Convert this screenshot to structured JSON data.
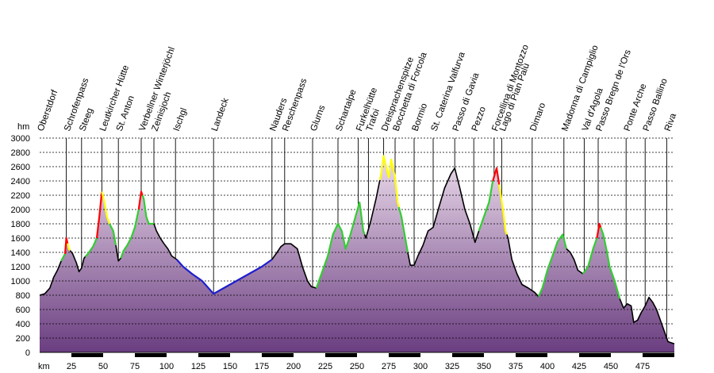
{
  "chart_data": {
    "type": "area",
    "ylabel": "hm",
    "xlabel": "km",
    "ylim": [
      0,
      3000
    ],
    "xlim": [
      0,
      500
    ],
    "y_ticks": [
      0,
      200,
      400,
      600,
      800,
      1000,
      1200,
      1400,
      1600,
      1800,
      2000,
      2200,
      2400,
      2600,
      2800,
      3000
    ],
    "x_ticks": [
      25,
      50,
      75,
      100,
      125,
      150,
      175,
      200,
      225,
      250,
      275,
      300,
      325,
      350,
      375,
      400,
      425,
      450,
      475
    ],
    "grid": true,
    "colors": {
      "area_top": "#ecdcec",
      "area_bottom": "#6a3d80",
      "line_default": "#000000",
      "line_green": "#33cc33",
      "line_yellow": "#ffff00",
      "line_red": "#ff0000",
      "line_blue": "#1f1fcc",
      "scale_bar": "#000000"
    },
    "profile": [
      [
        0,
        800
      ],
      [
        4,
        820
      ],
      [
        8,
        900
      ],
      [
        11,
        1050
      ],
      [
        14,
        1150
      ],
      [
        17,
        1280
      ],
      [
        20,
        1380
      ],
      [
        21,
        1600
      ],
      [
        23,
        1450
      ],
      [
        26,
        1380
      ],
      [
        29,
        1250
      ],
      [
        31,
        1130
      ],
      [
        33,
        1180
      ],
      [
        35,
        1320
      ],
      [
        38,
        1380
      ],
      [
        42,
        1480
      ],
      [
        45,
        1600
      ],
      [
        47,
        1900
      ],
      [
        49,
        2250
      ],
      [
        51,
        2100
      ],
      [
        53,
        1900
      ],
      [
        55,
        1800
      ],
      [
        58,
        1700
      ],
      [
        60,
        1500
      ],
      [
        62,
        1280
      ],
      [
        64,
        1320
      ],
      [
        66,
        1420
      ],
      [
        69,
        1500
      ],
      [
        72,
        1600
      ],
      [
        75,
        1750
      ],
      [
        78,
        2000
      ],
      [
        80,
        2250
      ],
      [
        82,
        2150
      ],
      [
        84,
        1900
      ],
      [
        86,
        1800
      ],
      [
        90,
        1800
      ],
      [
        92,
        1700
      ],
      [
        95,
        1600
      ],
      [
        98,
        1520
      ],
      [
        101,
        1450
      ],
      [
        104,
        1350
      ],
      [
        108,
        1300
      ],
      [
        113,
        1200
      ],
      [
        120,
        1100
      ],
      [
        128,
        1000
      ],
      [
        137,
        820
      ],
      [
        145,
        900
      ],
      [
        155,
        1000
      ],
      [
        165,
        1100
      ],
      [
        175,
        1200
      ],
      [
        183,
        1300
      ],
      [
        187,
        1400
      ],
      [
        190,
        1480
      ],
      [
        193,
        1520
      ],
      [
        198,
        1520
      ],
      [
        203,
        1450
      ],
      [
        207,
        1200
      ],
      [
        211,
        1000
      ],
      [
        214,
        920
      ],
      [
        218,
        900
      ],
      [
        222,
        1100
      ],
      [
        227,
        1350
      ],
      [
        231,
        1650
      ],
      [
        235,
        1800
      ],
      [
        238,
        1700
      ],
      [
        241,
        1450
      ],
      [
        244,
        1600
      ],
      [
        248,
        1850
      ],
      [
        252,
        2100
      ],
      [
        255,
        1700
      ],
      [
        257,
        1600
      ],
      [
        261,
        1850
      ],
      [
        265,
        2150
      ],
      [
        269,
        2500
      ],
      [
        271,
        2750
      ],
      [
        273,
        2600
      ],
      [
        275,
        2450
      ],
      [
        277,
        2700
      ],
      [
        280,
        2450
      ],
      [
        282,
        2100
      ],
      [
        285,
        1900
      ],
      [
        288,
        1600
      ],
      [
        290,
        1400
      ],
      [
        292,
        1220
      ],
      [
        295,
        1220
      ],
      [
        298,
        1350
      ],
      [
        302,
        1500
      ],
      [
        306,
        1700
      ],
      [
        310,
        1750
      ],
      [
        314,
        2000
      ],
      [
        319,
        2300
      ],
      [
        324,
        2500
      ],
      [
        327,
        2580
      ],
      [
        331,
        2300
      ],
      [
        335,
        2000
      ],
      [
        339,
        1800
      ],
      [
        343,
        1540
      ],
      [
        346,
        1700
      ],
      [
        350,
        1900
      ],
      [
        354,
        2100
      ],
      [
        357,
        2400
      ],
      [
        360,
        2580
      ],
      [
        362,
        2350
      ],
      [
        365,
        2000
      ],
      [
        367,
        1700
      ],
      [
        369,
        1600
      ],
      [
        372,
        1300
      ],
      [
        376,
        1100
      ],
      [
        380,
        950
      ],
      [
        385,
        900
      ],
      [
        390,
        840
      ],
      [
        393,
        780
      ],
      [
        396,
        900
      ],
      [
        400,
        1150
      ],
      [
        404,
        1350
      ],
      [
        408,
        1550
      ],
      [
        412,
        1650
      ],
      [
        415,
        1450
      ],
      [
        418,
        1400
      ],
      [
        421,
        1300
      ],
      [
        424,
        1150
      ],
      [
        428,
        1100
      ],
      [
        432,
        1200
      ],
      [
        436,
        1450
      ],
      [
        439,
        1600
      ],
      [
        441,
        1800
      ],
      [
        444,
        1650
      ],
      [
        447,
        1400
      ],
      [
        449,
        1200
      ],
      [
        453,
        1000
      ],
      [
        457,
        750
      ],
      [
        460,
        620
      ],
      [
        463,
        680
      ],
      [
        466,
        650
      ],
      [
        468,
        420
      ],
      [
        471,
        450
      ],
      [
        474,
        560
      ],
      [
        477,
        650
      ],
      [
        480,
        770
      ],
      [
        483,
        700
      ],
      [
        486,
        600
      ],
      [
        489,
        450
      ],
      [
        492,
        300
      ],
      [
        495,
        150
      ],
      [
        500,
        120
      ]
    ],
    "segments": [
      {
        "from": 0,
        "to": 17,
        "color": "black"
      },
      {
        "from": 17,
        "to": 20,
        "color": "green"
      },
      {
        "from": 20,
        "to": 22,
        "color": "red"
      },
      {
        "from": 22,
        "to": 24,
        "color": "yellow"
      },
      {
        "from": 24,
        "to": 36,
        "color": "black"
      },
      {
        "from": 36,
        "to": 45,
        "color": "green"
      },
      {
        "from": 45,
        "to": 49,
        "color": "red"
      },
      {
        "from": 49,
        "to": 55,
        "color": "yellow"
      },
      {
        "from": 55,
        "to": 60,
        "color": "green"
      },
      {
        "from": 60,
        "to": 64,
        "color": "black"
      },
      {
        "from": 64,
        "to": 78,
        "color": "green"
      },
      {
        "from": 78,
        "to": 81,
        "color": "red"
      },
      {
        "from": 81,
        "to": 90,
        "color": "green"
      },
      {
        "from": 90,
        "to": 108,
        "color": "black"
      },
      {
        "from": 108,
        "to": 183,
        "color": "blue"
      },
      {
        "from": 183,
        "to": 218,
        "color": "black"
      },
      {
        "from": 218,
        "to": 256,
        "color": "green"
      },
      {
        "from": 256,
        "to": 268,
        "color": "black"
      },
      {
        "from": 268,
        "to": 283,
        "color": "yellow"
      },
      {
        "from": 283,
        "to": 290,
        "color": "green"
      },
      {
        "from": 290,
        "to": 346,
        "color": "black"
      },
      {
        "from": 346,
        "to": 357,
        "color": "green"
      },
      {
        "from": 357,
        "to": 362,
        "color": "red"
      },
      {
        "from": 362,
        "to": 368,
        "color": "yellow"
      },
      {
        "from": 368,
        "to": 393,
        "color": "black"
      },
      {
        "from": 393,
        "to": 415,
        "color": "green"
      },
      {
        "from": 415,
        "to": 428,
        "color": "black"
      },
      {
        "from": 428,
        "to": 439,
        "color": "green"
      },
      {
        "from": 439,
        "to": 442,
        "color": "red"
      },
      {
        "from": 442,
        "to": 457,
        "color": "green"
      },
      {
        "from": 457,
        "to": 500,
        "color": "black"
      }
    ],
    "waypoints": [
      {
        "km": 0,
        "name": "Oberstdorf",
        "line": false
      },
      {
        "km": 21,
        "name": "Schrofenpass"
      },
      {
        "km": 33,
        "name": "Steeg"
      },
      {
        "km": 49,
        "name": "Leutkircher Hütte"
      },
      {
        "km": 62,
        "name": "St. Anton"
      },
      {
        "km": 80,
        "name": "Verbellner Winterjöchl"
      },
      {
        "km": 90,
        "name": "Zeinisjoch"
      },
      {
        "km": 107,
        "name": "Ischgl"
      },
      {
        "km": 137,
        "name": "Landeck"
      },
      {
        "km": 183,
        "name": "Nauders"
      },
      {
        "km": 193,
        "name": "Reschenpass"
      },
      {
        "km": 215,
        "name": "Glurns"
      },
      {
        "km": 235,
        "name": "Schartalpe"
      },
      {
        "km": 251,
        "name": "Furkelhütte"
      },
      {
        "km": 259,
        "name": "Trafoi"
      },
      {
        "km": 271,
        "name": "Dreisprachenspitze"
      },
      {
        "km": 280,
        "name": "Bocchetta di Forcola"
      },
      {
        "km": 295,
        "name": "Bormio"
      },
      {
        "km": 310,
        "name": "St. Caterina Valfurva"
      },
      {
        "km": 327,
        "name": "Passo di Gavia"
      },
      {
        "km": 342,
        "name": "Pezzo"
      },
      {
        "km": 358,
        "name": "Forcellina di Montozzo"
      },
      {
        "km": 364,
        "name": "Lago di Pian Palù"
      },
      {
        "km": 388,
        "name": "Dimaro"
      },
      {
        "km": 413,
        "name": "Madonna di Campiglio"
      },
      {
        "km": 429,
        "name": "Val d'Agola"
      },
      {
        "km": 440,
        "name": "Passo Bregn de l'Ors"
      },
      {
        "km": 462,
        "name": "Ponte Arche"
      },
      {
        "km": 477,
        "name": "Passo Ballino"
      },
      {
        "km": 494,
        "name": "Riva"
      }
    ]
  }
}
